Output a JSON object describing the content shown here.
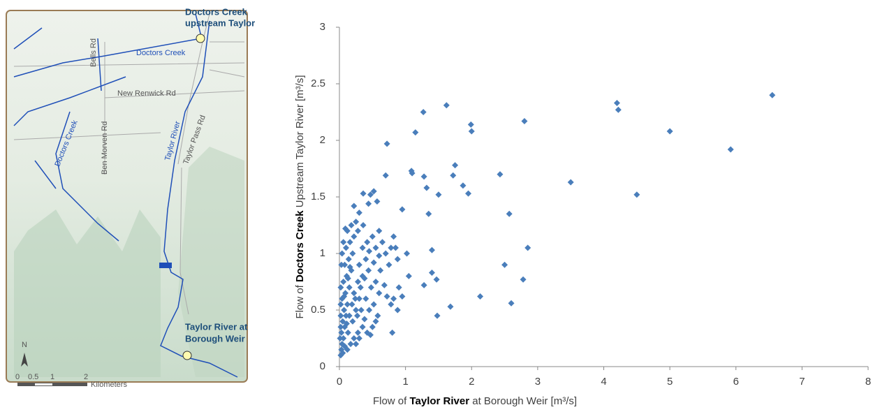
{
  "chart_data": {
    "type": "scatter",
    "xlabel": [
      "Flow of",
      "Taylor River",
      "at Borough Weir [m³/s]"
    ],
    "ylabel": [
      "Flow of",
      "Doctors Creek",
      "Upstream Taylor River [m³/s]"
    ],
    "xlim": [
      0,
      8
    ],
    "xticks": [
      0,
      1,
      2,
      3,
      4,
      5,
      6,
      7,
      8
    ],
    "ylim": [
      0,
      3
    ],
    "yticks": [
      0,
      0.5,
      1,
      1.5,
      2,
      2.5,
      3
    ],
    "grid": false,
    "color": "#4a7ebb",
    "x": [
      6.55,
      4.2,
      4.22,
      1.62,
      1.27,
      1.99,
      2.0,
      2.8,
      5.0,
      5.92,
      1.15,
      0.72,
      3.5,
      4.5,
      1.09,
      1.1,
      1.28,
      1.75,
      1.72,
      2.43,
      1.32,
      1.87,
      1.95,
      1.5,
      0.7,
      2.57,
      1.35,
      0.95,
      0.52,
      0.47,
      0.36,
      0.22,
      0.3,
      0.44,
      0.57,
      2.85,
      2.5,
      2.78,
      2.6,
      2.13,
      1.68,
      1.48,
      1.4,
      1.4,
      1.47,
      1.28,
      1.05,
      1.02,
      0.85,
      0.8,
      0.82,
      0.88,
      0.02,
      0.03,
      0.05,
      0.04,
      0.06,
      0.03,
      0.08,
      0.05,
      0.1,
      0.07,
      0.12,
      0.04,
      0.09,
      0.15,
      0.06,
      0.11,
      0.18,
      0.08,
      0.14,
      0.2,
      0.1,
      0.16,
      0.22,
      0.12,
      0.18,
      0.25,
      0.13,
      0.2,
      0.25,
      0.3,
      0.22,
      0.28,
      0.35,
      0.3,
      0.4,
      0.35,
      0.42,
      0.5,
      0.45,
      0.55,
      0.6,
      0.65,
      0.7,
      0.75,
      0.62,
      0.55,
      0.48,
      0.4,
      0.33,
      0.45,
      0.52,
      0.58,
      0.6,
      0.68,
      0.72,
      0.5,
      0.42,
      0.35,
      0.28,
      0.22,
      0.17,
      0.12,
      0.08,
      0.15,
      0.25,
      0.3,
      0.47,
      0.55,
      0.38,
      0.27,
      0.19,
      0.24,
      0.32,
      0.38,
      0.44,
      0.52,
      0.6,
      0.78,
      0.82,
      0.88,
      0.9,
      0.95,
      0.78,
      0.02,
      0.02,
      0.03,
      0.04,
      0.02,
      0.06,
      0.09,
      0.28,
      0.36,
      0.11,
      0.07,
      0.13,
      0.16,
      0.01,
      0.02
    ],
    "values": [
      2.4,
      2.33,
      2.27,
      2.31,
      2.25,
      2.14,
      2.08,
      2.17,
      2.08,
      1.92,
      2.07,
      1.97,
      1.63,
      1.52,
      1.73,
      1.71,
      1.68,
      1.78,
      1.69,
      1.7,
      1.58,
      1.6,
      1.53,
      1.52,
      1.69,
      1.35,
      1.35,
      1.39,
      1.55,
      1.52,
      1.53,
      1.42,
      1.36,
      1.44,
      1.46,
      1.05,
      0.9,
      0.77,
      0.56,
      0.62,
      0.53,
      0.45,
      1.03,
      0.83,
      0.77,
      0.72,
      0.8,
      1.0,
      1.05,
      0.3,
      0.6,
      0.5,
      0.1,
      0.15,
      0.12,
      0.2,
      0.25,
      0.3,
      0.35,
      0.4,
      0.45,
      0.5,
      0.55,
      0.6,
      0.65,
      0.7,
      0.75,
      0.8,
      0.85,
      0.9,
      0.95,
      1.0,
      1.05,
      1.1,
      1.15,
      1.2,
      1.25,
      1.28,
      0.3,
      0.4,
      0.5,
      0.6,
      0.65,
      0.75,
      0.8,
      0.9,
      0.95,
      1.05,
      1.1,
      1.15,
      1.02,
      1.05,
      1.2,
      1.1,
      1.0,
      0.9,
      0.85,
      0.75,
      0.7,
      0.6,
      0.5,
      0.5,
      0.55,
      0.45,
      0.65,
      0.72,
      0.62,
      0.35,
      0.3,
      0.35,
      0.3,
      0.25,
      0.2,
      0.15,
      0.18,
      0.45,
      0.2,
      0.25,
      0.28,
      0.4,
      0.42,
      0.45,
      0.55,
      0.6,
      0.7,
      0.78,
      0.85,
      0.92,
      0.98,
      1.05,
      1.15,
      0.95,
      0.7,
      0.62,
      0.55,
      0.45,
      0.7,
      0.9,
      1.0,
      0.55,
      1.1,
      1.22,
      1.2,
      1.25,
      0.38,
      0.62,
      0.78,
      0.88,
      0.25,
      0.35
    ]
  },
  "map": {
    "sites": [
      [
        "Doctors Creek",
        "upstream Taylor"
      ],
      [
        "Taylor River at",
        "Borough Weir"
      ]
    ],
    "labels": [
      "Bells Rd",
      "Doctors Creek",
      "New Renwick Rd",
      "Doctors Creek",
      "Ben Morven Rd",
      "Taylor River",
      "Taylor Pass Rd"
    ],
    "north": "N",
    "scale": [
      "0",
      "0.5",
      "1",
      "2",
      "Kilometers"
    ]
  }
}
